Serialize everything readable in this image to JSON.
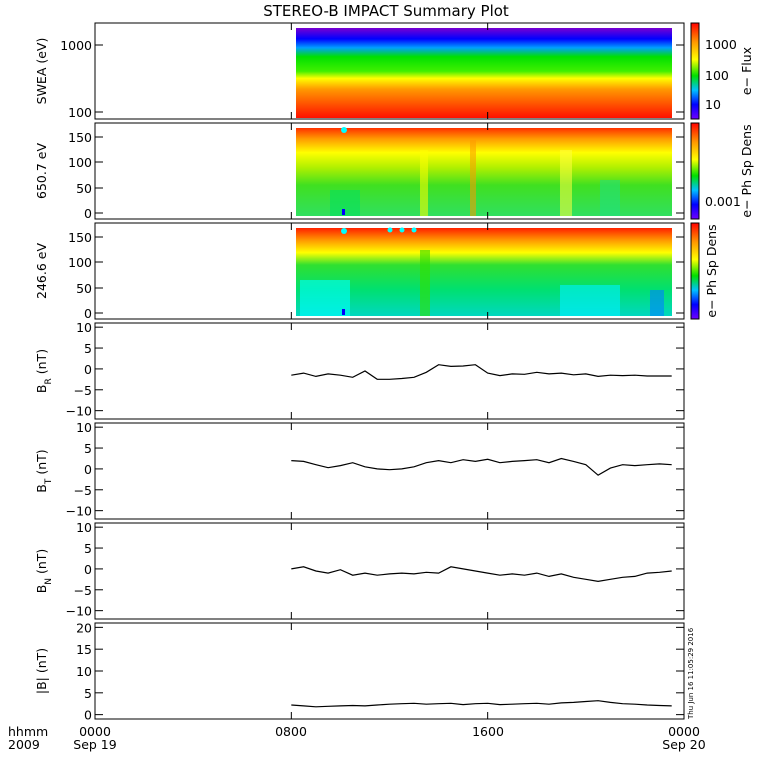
{
  "title": "STEREO-B IMPACT Summary Plot",
  "footer": {
    "row_label_1": "hhmm",
    "row_label_2": "2009",
    "ticks": [
      {
        "top": "0000",
        "bottom": "Sep 19",
        "hour": 0
      },
      {
        "top": "0800",
        "bottom": "",
        "hour": 8
      },
      {
        "top": "1600",
        "bottom": "",
        "hour": 16
      },
      {
        "top": "0000",
        "bottom": "Sep 20",
        "hour": 24
      }
    ]
  },
  "timestamp": "Thu Jun 16 11:05:29 2016",
  "colors": {
    "red": "#ff0000",
    "orange": "#ff9900",
    "yellow": "#ffff00",
    "green": "#00e000",
    "cyan": "#00ffff",
    "blue": "#0000ff",
    "violet": "#8000ff"
  },
  "panels": {
    "swea": {
      "ylabel": "SWEA (eV)",
      "ticks": [
        "1000",
        "100"
      ],
      "cbar_label": "e− Flux",
      "cbar_ticks": [
        "1000",
        "100",
        "10"
      ]
    },
    "pad650": {
      "ylabel": "650.7 eV",
      "ticks": [
        "150",
        "100",
        "50",
        "0"
      ],
      "cbar_label": "e− Ph Sp Dens",
      "cbar_ticks": [
        "0.001"
      ]
    },
    "pad246": {
      "ylabel": "246.6 eV",
      "ticks": [
        "150",
        "100",
        "50",
        "0"
      ],
      "cbar_label": "e− Ph Sp Dens",
      "cbar_ticks": []
    },
    "br": {
      "ylabel": "B",
      "sub": "R",
      "unit": " (nT)",
      "ticks": [
        "10",
        "5",
        "0",
        "−5",
        "−10"
      ]
    },
    "bt": {
      "ylabel": "B",
      "sub": "T",
      "unit": " (nT)",
      "ticks": [
        "10",
        "5",
        "0",
        "−5",
        "−10"
      ]
    },
    "bn": {
      "ylabel": "B",
      "sub": "N",
      "unit": " (nT)",
      "ticks": [
        "10",
        "5",
        "0",
        "−5",
        "−10"
      ]
    },
    "bmag": {
      "ylabel": "|B| (nT)",
      "ticks": [
        "20",
        "15",
        "10",
        "5",
        "0"
      ]
    }
  },
  "chart_data": [
    {
      "type": "heatmap",
      "panel": "swea",
      "title": "STEREO-B IMPACT Summary Plot",
      "ylabel": "SWEA (eV)",
      "xlabel": "",
      "ylim": [
        90,
        1300
      ],
      "yscale": "log",
      "data_start_hour": 8.0,
      "data_end_hour": 24.0,
      "colorbar": {
        "label": "e− Flux",
        "scale": "log",
        "ticks": [
          10,
          100,
          1000
        ]
      }
    },
    {
      "type": "heatmap",
      "panel": "pad650",
      "ylabel": "650.7 eV",
      "ylim": [
        -10,
        180
      ],
      "data_start_hour": 8.0,
      "data_end_hour": 24.0,
      "colorbar": {
        "label": "e− Ph Sp Dens",
        "ticks": [
          0.001
        ]
      }
    },
    {
      "type": "heatmap",
      "panel": "pad246",
      "ylabel": "246.6 eV",
      "ylim": [
        -10,
        180
      ],
      "data_start_hour": 8.0,
      "data_end_hour": 24.0,
      "colorbar": {
        "label": "e− Ph Sp Dens",
        "ticks": []
      }
    },
    {
      "type": "line",
      "panel": "br",
      "ylabel": "B_R (nT)",
      "ylim": [
        -12,
        11
      ],
      "x": [
        8.0,
        8.5,
        9,
        9.5,
        10,
        10.5,
        11,
        11.5,
        12,
        12.5,
        13,
        13.5,
        14,
        14.5,
        15,
        15.5,
        16,
        16.5,
        17,
        17.5,
        18,
        18.5,
        19,
        19.5,
        20,
        20.5,
        21,
        21.5,
        22,
        22.5,
        23,
        23.5
      ],
      "values": [
        -1.5,
        -1.0,
        -1.8,
        -1.2,
        -1.5,
        -2.0,
        -0.5,
        -2.5,
        -2.5,
        -2.3,
        -2.0,
        -0.8,
        1.0,
        0.6,
        0.7,
        1.0,
        -1.0,
        -1.6,
        -1.2,
        -1.3,
        -0.8,
        -1.2,
        -1.0,
        -1.4,
        -1.2,
        -1.8,
        -1.5,
        -1.6,
        -1.5,
        -1.7,
        -1.7,
        -1.7
      ]
    },
    {
      "type": "line",
      "panel": "bt",
      "ylabel": "B_T (nT)",
      "ylim": [
        -12,
        11
      ],
      "x": [
        8.0,
        8.5,
        9,
        9.5,
        10,
        10.5,
        11,
        11.5,
        12,
        12.5,
        13,
        13.5,
        14,
        14.5,
        15,
        15.5,
        16,
        16.5,
        17,
        17.5,
        18,
        18.5,
        19,
        19.5,
        20,
        20.5,
        21,
        21.5,
        22,
        22.5,
        23,
        23.5
      ],
      "values": [
        2.0,
        1.8,
        1.0,
        0.3,
        0.8,
        1.5,
        0.5,
        0.0,
        -0.2,
        0.0,
        0.5,
        1.5,
        2.0,
        1.5,
        2.2,
        1.8,
        2.3,
        1.5,
        1.8,
        2.0,
        2.2,
        1.5,
        2.5,
        1.8,
        1.0,
        -1.5,
        0.2,
        1.0,
        0.8,
        1.0,
        1.2,
        1.0
      ]
    },
    {
      "type": "line",
      "panel": "bn",
      "ylabel": "B_N (nT)",
      "ylim": [
        -12,
        11
      ],
      "x": [
        8.0,
        8.5,
        9,
        9.5,
        10,
        10.5,
        11,
        11.5,
        12,
        12.5,
        13,
        13.5,
        14,
        14.5,
        15,
        15.5,
        16,
        16.5,
        17,
        17.5,
        18,
        18.5,
        19,
        19.5,
        20,
        20.5,
        21,
        21.5,
        22,
        22.5,
        23,
        23.5
      ],
      "values": [
        0.0,
        0.5,
        -0.5,
        -1.0,
        -0.2,
        -1.5,
        -1.0,
        -1.5,
        -1.2,
        -1.0,
        -1.2,
        -0.8,
        -1.0,
        0.5,
        0.0,
        -0.5,
        -1.0,
        -1.5,
        -1.2,
        -1.5,
        -1.0,
        -1.8,
        -1.2,
        -2.0,
        -2.5,
        -3.0,
        -2.5,
        -2.0,
        -1.8,
        -1.0,
        -0.8,
        -0.5
      ]
    },
    {
      "type": "line",
      "panel": "bmag",
      "ylabel": "|B| (nT)",
      "ylim": [
        -1,
        21
      ],
      "x": [
        8.0,
        8.5,
        9,
        9.5,
        10,
        10.5,
        11,
        11.5,
        12,
        12.5,
        13,
        13.5,
        14,
        14.5,
        15,
        15.5,
        16,
        16.5,
        17,
        17.5,
        18,
        18.5,
        19,
        19.5,
        20,
        20.5,
        21,
        21.5,
        22,
        22.5,
        23,
        23.5
      ],
      "values": [
        2.2,
        2.0,
        1.8,
        1.9,
        2.0,
        2.1,
        2.0,
        2.2,
        2.4,
        2.5,
        2.6,
        2.4,
        2.5,
        2.6,
        2.3,
        2.5,
        2.6,
        2.3,
        2.4,
        2.5,
        2.6,
        2.4,
        2.7,
        2.8,
        3.0,
        3.2,
        2.8,
        2.5,
        2.4,
        2.2,
        2.1,
        2.0
      ]
    }
  ]
}
